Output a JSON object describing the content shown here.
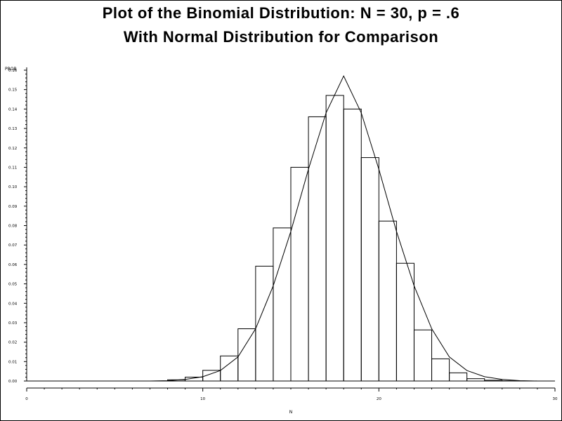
{
  "chart_data": {
    "type": "bar",
    "title": "Plot of the Binomial Distribution: N = 30, p = .6",
    "subtitle": "With Normal Distribution for Comparison",
    "xlabel": "N",
    "ylabel": "PROB",
    "xlim": [
      0,
      30
    ],
    "ylim": [
      0,
      0.16
    ],
    "x_ticks": [
      0,
      10,
      20,
      30
    ],
    "y_ticks": [
      0.0,
      0.01,
      0.02,
      0.03,
      0.04,
      0.05,
      0.06,
      0.07,
      0.08,
      0.09,
      0.1,
      0.11,
      0.12,
      0.13,
      0.14,
      0.15,
      0.16
    ],
    "y_tick_labels": [
      "0.00",
      "0.01",
      "0.02",
      "0.03",
      "0.04",
      "0.05",
      "0.06",
      "0.07",
      "0.08",
      "0.09",
      "0.10",
      "0.11",
      "0.12",
      "0.13",
      "0.14",
      "0.15",
      "0.16"
    ],
    "grid": false,
    "series": [
      {
        "kind": "bars",
        "x": [
          0,
          1,
          2,
          3,
          4,
          5,
          6,
          7,
          8,
          9,
          10,
          11,
          12,
          13,
          14,
          15,
          16,
          17,
          18,
          19,
          20,
          21,
          22,
          23,
          24,
          25,
          26,
          27,
          28,
          29,
          30
        ],
        "values": [
          0.0,
          0.0,
          0.0,
          0.0,
          0.0,
          0.0,
          0.0,
          0.0,
          0.0006,
          0.002,
          0.0055,
          0.0129,
          0.0269,
          0.0591,
          0.0788,
          0.11,
          0.136,
          0.147,
          0.14,
          0.115,
          0.0823,
          0.0606,
          0.0263,
          0.0114,
          0.0042,
          0.0012,
          0.0004,
          0.0001,
          0.0,
          0.0,
          0.0
        ]
      },
      {
        "kind": "line",
        "x": [
          0,
          1,
          2,
          3,
          4,
          5,
          6,
          7,
          8,
          9,
          10,
          11,
          12,
          13,
          14,
          15,
          16,
          17,
          18,
          19,
          20,
          21,
          22,
          23,
          24,
          25,
          26,
          27,
          28,
          29,
          30
        ],
        "values": [
          0.0,
          0.0,
          0.0,
          0.0,
          0.0,
          0.0,
          0.0,
          0.0,
          0.0002,
          0.0008,
          0.0022,
          0.0054,
          0.0124,
          0.0269,
          0.049,
          0.077,
          0.109,
          0.138,
          0.157,
          0.138,
          0.109,
          0.077,
          0.049,
          0.0269,
          0.0124,
          0.0054,
          0.0022,
          0.0008,
          0.0002,
          0.0,
          0.0
        ]
      }
    ]
  }
}
